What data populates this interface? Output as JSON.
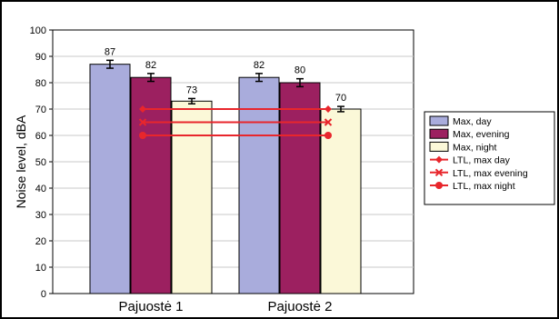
{
  "chart_data": {
    "type": "bar",
    "categories": [
      "Pajuostė 1",
      "Pajuostė 2"
    ],
    "ylabel": "Noise level, dBA",
    "xlabel": "",
    "ylim": [
      0,
      100
    ],
    "yticks": [
      0,
      10,
      20,
      30,
      40,
      50,
      60,
      70,
      80,
      90,
      100
    ],
    "grid": "horizontal",
    "legend_position": "right",
    "series": [
      {
        "name": "Max, day",
        "values": [
          87,
          82
        ],
        "error": [
          1.5,
          1.5
        ],
        "color": "#a9acdc"
      },
      {
        "name": "Max, evening",
        "values": [
          82,
          80
        ],
        "error": [
          1.5,
          1.5
        ],
        "color": "#9c2060"
      },
      {
        "name": "Max, night",
        "values": [
          73,
          70
        ],
        "error": [
          1,
          1
        ],
        "color": "#fbf8d8"
      }
    ],
    "reference_lines": [
      {
        "name": "LTL, max day",
        "value": 70,
        "color": "#e8262c",
        "marker": "diamond"
      },
      {
        "name": "LTL, max evening",
        "value": 65,
        "color": "#e8262c",
        "marker": "cross"
      },
      {
        "name": "LTL, max night",
        "value": 60,
        "color": "#e8262c",
        "marker": "circle"
      }
    ]
  }
}
